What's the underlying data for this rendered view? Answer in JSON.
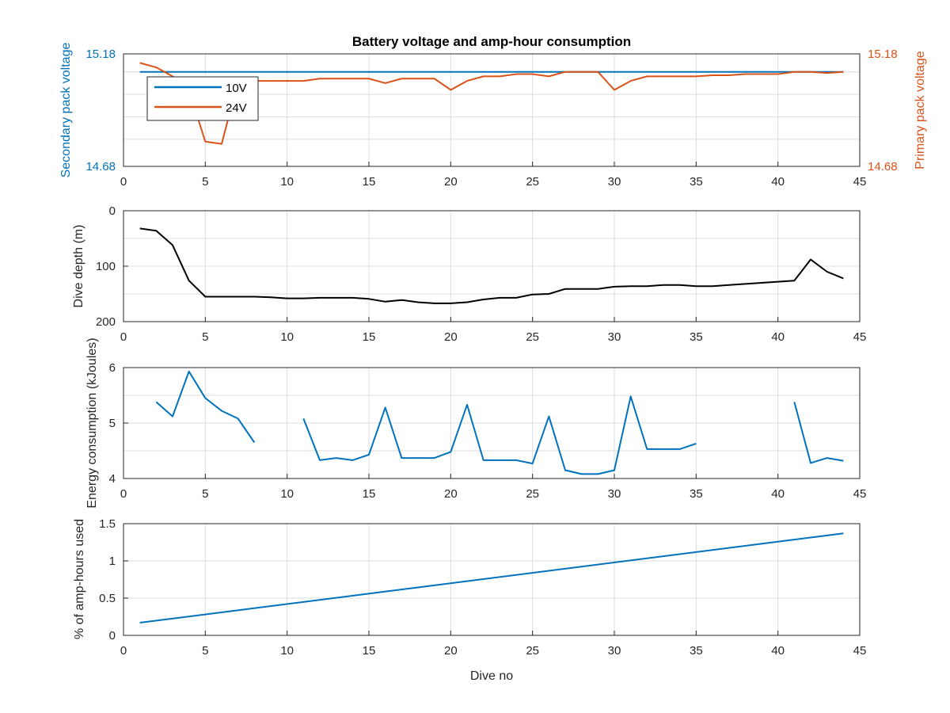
{
  "colors": {
    "blue": "#0072BD",
    "orange": "#D95319",
    "black": "#000000",
    "grid": "#dcdcdc",
    "axis": "#262626",
    "left_axis_color": "#0072BD"
  },
  "chart_data": [
    {
      "type": "line",
      "title": "Battery voltage and amp-hour consumption",
      "xlim": [
        0,
        45
      ],
      "x_ticks": [
        "0",
        "5",
        "10",
        "15",
        "20",
        "25",
        "30",
        "35",
        "40",
        "45"
      ],
      "ylim_left": [
        14.68,
        15.18
      ],
      "ylabel_left": "Secondary pack voltage",
      "y_ticks_left": [
        "14.68",
        "15.18"
      ],
      "ylim_right": [
        14.68,
        15.18
      ],
      "ylabel_right": "Primary pack voltage",
      "y_ticks_right": [
        "14.68",
        "15.18"
      ],
      "grid": true,
      "legend_position": "top-left",
      "series": [
        {
          "name": "10V",
          "axis": "left",
          "x": [
            1,
            2,
            3,
            4,
            5,
            6,
            7,
            8,
            9,
            10,
            11,
            12,
            13,
            14,
            15,
            16,
            17,
            18,
            19,
            20,
            21,
            22,
            23,
            24,
            25,
            26,
            27,
            28,
            29,
            30,
            31,
            32,
            33,
            34,
            35,
            36,
            37,
            38,
            39,
            40,
            41,
            42,
            43,
            44
          ],
          "y": [
            15.1,
            15.1,
            15.1,
            15.1,
            15.1,
            15.1,
            15.1,
            15.1,
            15.1,
            15.1,
            15.1,
            15.1,
            15.1,
            15.1,
            15.1,
            15.1,
            15.1,
            15.1,
            15.1,
            15.1,
            15.1,
            15.1,
            15.1,
            15.1,
            15.1,
            15.1,
            15.1,
            15.1,
            15.1,
            15.1,
            15.1,
            15.1,
            15.1,
            15.1,
            15.1,
            15.1,
            15.1,
            15.1,
            15.1,
            15.1,
            15.1,
            15.1,
            15.1,
            15.1
          ]
        },
        {
          "name": "24V",
          "axis": "right",
          "x": [
            1,
            2,
            3,
            4,
            5,
            6,
            7,
            8,
            9,
            10,
            11,
            12,
            13,
            14,
            15,
            16,
            17,
            18,
            19,
            20,
            21,
            22,
            23,
            24,
            25,
            26,
            27,
            28,
            29,
            30,
            31,
            32,
            33,
            34,
            35,
            36,
            37,
            38,
            39,
            40,
            41,
            42,
            43,
            44
          ],
          "y": [
            15.14,
            15.12,
            15.08,
            15.02,
            14.79,
            14.78,
            15.06,
            15.06,
            15.06,
            15.06,
            15.06,
            15.07,
            15.07,
            15.07,
            15.07,
            15.05,
            15.07,
            15.07,
            15.07,
            15.02,
            15.06,
            15.08,
            15.08,
            15.09,
            15.09,
            15.08,
            15.1,
            15.1,
            15.1,
            15.02,
            15.06,
            15.08,
            15.08,
            15.08,
            15.08,
            15.085,
            15.085,
            15.09,
            15.09,
            15.09,
            15.1,
            15.1,
            15.095,
            15.1
          ]
        }
      ]
    },
    {
      "type": "line",
      "xlim": [
        0,
        45
      ],
      "x_ticks": [
        "0",
        "5",
        "10",
        "15",
        "20",
        "25",
        "30",
        "35",
        "40",
        "45"
      ],
      "ylim": [
        200,
        0
      ],
      "y_reversed": true,
      "ylabel": "Dive depth (m)",
      "y_ticks": [
        "0",
        "100",
        "200"
      ],
      "grid": true,
      "series": [
        {
          "x": [
            1,
            2,
            3,
            4,
            5,
            6,
            7,
            8,
            9,
            10,
            11,
            12,
            13,
            14,
            15,
            16,
            17,
            18,
            19,
            20,
            21,
            22,
            23,
            24,
            25,
            26,
            27,
            28,
            29,
            30,
            31,
            32,
            33,
            34,
            35,
            36,
            37,
            38,
            39,
            40,
            41,
            42,
            43,
            44
          ],
          "y": [
            32,
            36,
            62,
            126,
            155,
            155,
            155,
            155,
            156,
            158,
            158,
            157,
            157,
            157,
            159,
            164,
            161,
            165,
            167,
            167,
            165,
            160,
            157,
            157,
            151,
            150,
            141,
            141,
            141,
            137,
            136,
            136,
            134,
            134,
            136,
            136,
            134,
            132,
            130,
            128,
            126,
            88,
            110,
            122
          ]
        }
      ]
    },
    {
      "type": "line",
      "xlim": [
        0,
        45
      ],
      "x_ticks": [
        "0",
        "5",
        "10",
        "15",
        "20",
        "25",
        "30",
        "35",
        "40",
        "45"
      ],
      "ylim": [
        4,
        6
      ],
      "ylabel": "Energy consumption (kJoules)",
      "y_ticks": [
        "4",
        "5",
        "6"
      ],
      "grid": true,
      "series": [
        {
          "x": [
            1,
            2,
            3,
            4,
            5,
            6,
            7,
            8,
            9,
            10,
            11,
            12,
            13,
            14,
            15,
            16,
            17,
            18,
            19,
            20,
            21,
            22,
            23,
            24,
            25,
            26,
            27,
            28,
            29,
            30,
            31,
            32,
            33,
            34,
            35,
            36,
            37,
            38,
            39,
            40,
            41,
            42,
            43,
            44
          ],
          "y": [
            null,
            5.38,
            5.12,
            5.93,
            5.45,
            5.22,
            5.08,
            4.65,
            null,
            null,
            5.08,
            4.33,
            4.37,
            4.33,
            4.43,
            5.28,
            4.37,
            4.37,
            4.37,
            4.48,
            5.33,
            4.33,
            4.33,
            4.33,
            4.27,
            5.12,
            4.15,
            4.08,
            4.08,
            4.15,
            5.48,
            4.53,
            4.53,
            4.53,
            4.63,
            null,
            null,
            null,
            null,
            null,
            5.38,
            4.28,
            4.37,
            4.32
          ]
        }
      ]
    },
    {
      "type": "line",
      "xlim": [
        0,
        45
      ],
      "x_ticks": [
        "0",
        "5",
        "10",
        "15",
        "20",
        "25",
        "30",
        "35",
        "40",
        "45"
      ],
      "ylim": [
        0,
        1.5
      ],
      "ylabel": "% of amp-hours used",
      "y_ticks": [
        "0",
        "0.5",
        "1",
        "1.5"
      ],
      "xlabel": "Dive no",
      "grid": true,
      "series": [
        {
          "x": [
            1,
            44
          ],
          "y": [
            0.17,
            1.37
          ]
        }
      ]
    }
  ]
}
